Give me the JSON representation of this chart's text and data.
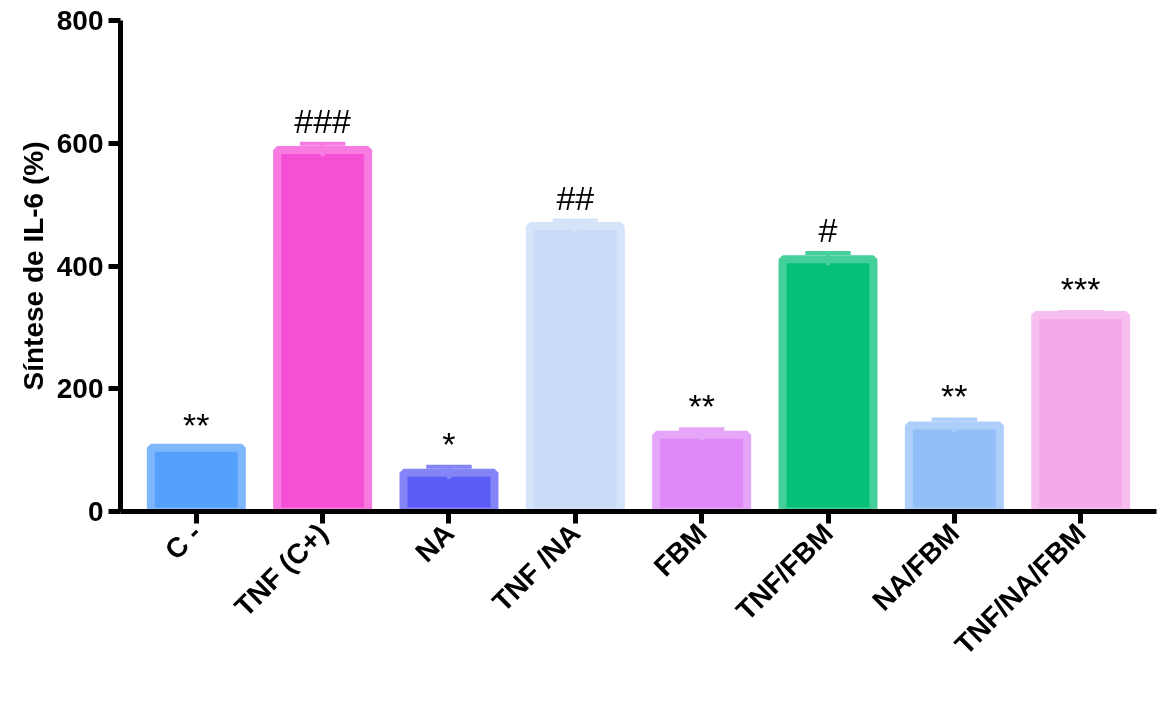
{
  "chart_data": {
    "type": "bar",
    "ylabel": "Síntese de IL-6 (%)",
    "categories": [
      "C -",
      "TNF (C+)",
      "NA",
      "TNF /NA",
      "FBM",
      "TNF/FBM",
      "NA/FBM",
      "TNF/NA/FBM"
    ],
    "values": [
      104,
      589,
      63,
      465,
      125,
      411,
      140,
      320
    ],
    "errors": [
      null,
      10,
      10,
      9,
      9,
      10,
      10,
      5
    ],
    "colors": [
      "#55a0fb",
      "#f54fd6",
      "#5b5cf5",
      "#c9dcf7",
      "#dd88f6",
      "#06c07a",
      "#92bff8",
      "#f4aaea"
    ],
    "ylim": [
      0,
      800
    ],
    "yticks": [
      0,
      200,
      400,
      600,
      800
    ],
    "grid": false,
    "annotations": [
      {
        "text": "**",
        "x": "C -",
        "y": 104
      },
      {
        "text": "###",
        "x": "TNF (C+)",
        "y": 599
      },
      {
        "text": "*",
        "x": "NA",
        "y": 73
      },
      {
        "text": "##",
        "x": "TNF /NA",
        "y": 474
      },
      {
        "text": "**",
        "x": "FBM",
        "y": 134
      },
      {
        "text": "#",
        "x": "TNF/FBM",
        "y": 421
      },
      {
        "text": "**",
        "x": "NA/FBM",
        "y": 150
      },
      {
        "text": "***",
        "x": "TNF/NA/FBM",
        "y": 325
      }
    ]
  }
}
